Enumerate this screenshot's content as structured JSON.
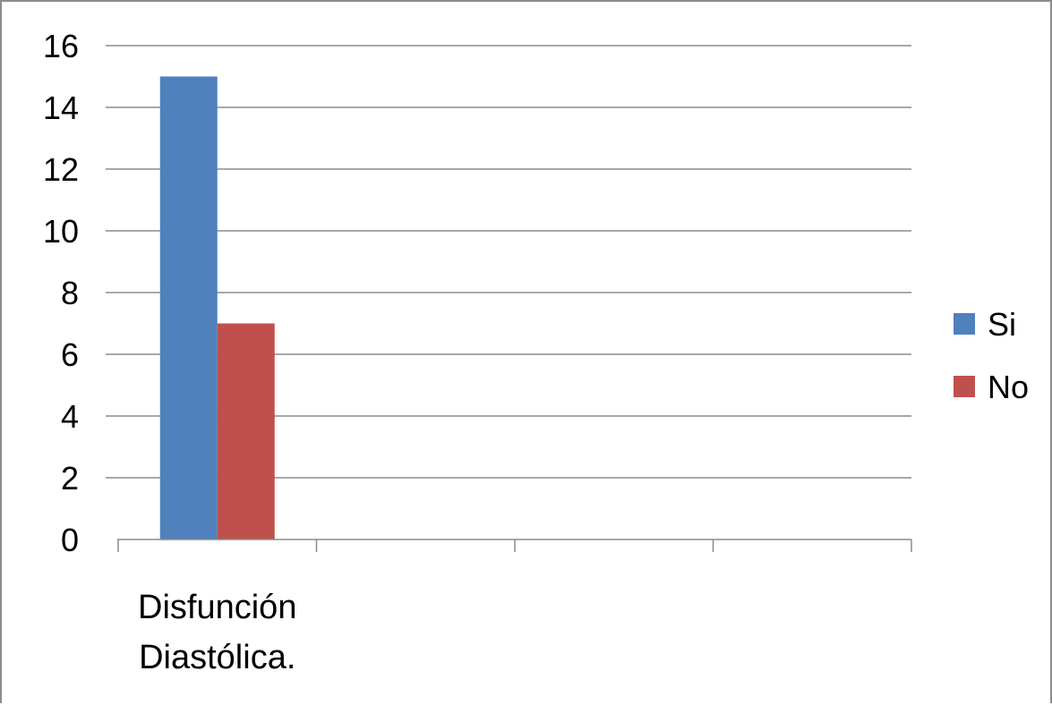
{
  "chart_data": {
    "type": "bar",
    "categories": [
      "Disfunción Diastólica.",
      "",
      "",
      ""
    ],
    "category_lines": [
      [
        "Disfunción",
        "Diastólica."
      ],
      [],
      [],
      []
    ],
    "series": [
      {
        "name": "Si",
        "values": [
          15,
          null,
          null,
          null
        ],
        "color": "#4F81BD"
      },
      {
        "name": "No",
        "values": [
          7,
          null,
          null,
          null
        ],
        "color": "#C0504D"
      }
    ],
    "title": "",
    "xlabel": "",
    "ylabel": "",
    "ylim": [
      0,
      16
    ],
    "yticks": [
      0,
      2,
      4,
      6,
      8,
      10,
      12,
      14,
      16
    ],
    "grid": true,
    "legend_position": "right"
  }
}
